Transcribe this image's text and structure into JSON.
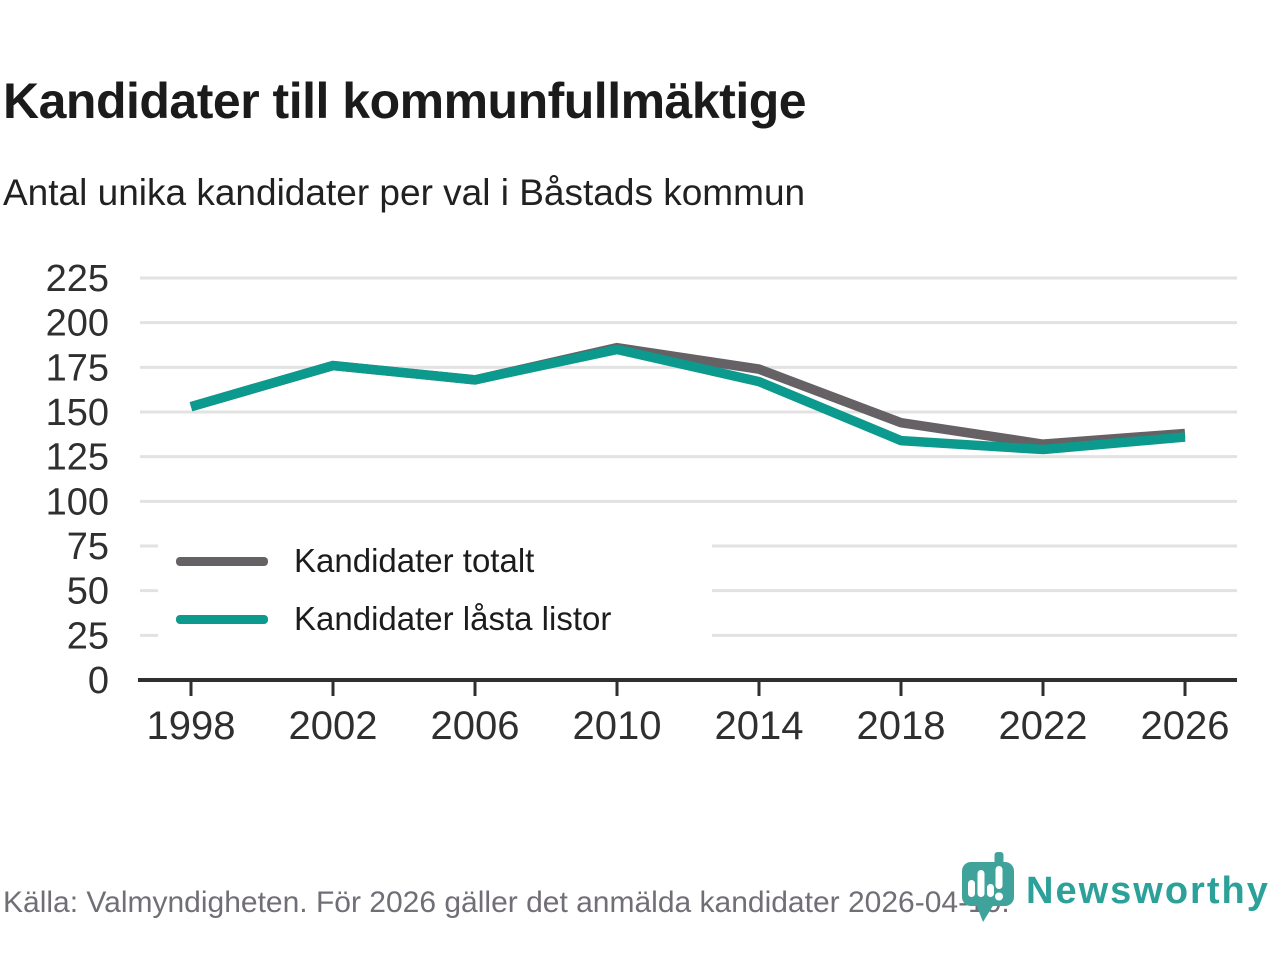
{
  "header": {
    "title": "Kandidater till kommunfullmäktige",
    "subtitle": "Antal unika kandidater per val i Båstads kommun"
  },
  "chart_data": {
    "type": "line",
    "title": "Kandidater till kommunfullmäktige",
    "subtitle": "Antal unika kandidater per val i Båstads kommun",
    "x": [
      1998,
      2002,
      2006,
      2010,
      2014,
      2018,
      2022,
      2026
    ],
    "series": [
      {
        "name": "Kandidater totalt",
        "color": "#656165",
        "values": [
          153,
          176,
          168,
          186,
          174,
          144,
          132,
          138
        ]
      },
      {
        "name": "Kandidater låsta listor",
        "color": "#0b9a8d",
        "values": [
          153,
          176,
          168,
          185,
          167,
          134,
          129,
          136
        ]
      }
    ],
    "xlabel": "",
    "ylabel": "",
    "ylim": [
      0,
      225
    ],
    "ytick_step": 25,
    "grid": true,
    "legend_position": "inside-left",
    "colors": {
      "grid": "#e2e2e2",
      "axis": "#2f2f2f",
      "axis_text": "#2f2f2f"
    }
  },
  "footer": {
    "source": "Källa: Valmyndigheten. För 2026 gäller det anmälda kandidater 2026-04-10."
  },
  "logo": {
    "brand": "Newsworthy",
    "icon": "newsworthy-pin-icon",
    "color": "#2ba199",
    "pin_color": "#3fa39b"
  }
}
